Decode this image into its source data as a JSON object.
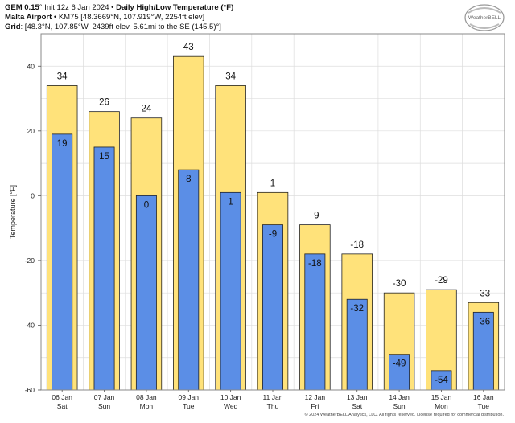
{
  "header": {
    "line1_model": "GEM 0.15",
    "line1_deg": "°",
    "line1_init": " Init 12z 6 Jan 2024",
    "line1_sep": " • ",
    "line1_title": "Daily High/Low Temperature (°F)",
    "line2_station": "Malta Airport",
    "line2_detail": " • KM75 [48.3669°N, 107.919°W, 2254ft elev]",
    "line3_label": "Grid",
    "line3_detail": ": [48.3°N, 107.85°W, 2439ft elev, 5.61mi to the SE (145.5)°]"
  },
  "logo": {
    "text": "WeatherBELL"
  },
  "footer": {
    "text": "© 2024 WeatherBELL Analytics, LLC. All rights reserved. License required for commercial distribution."
  },
  "chart_data": {
    "type": "bar",
    "title": "Daily High/Low Temperature (°F)",
    "ylabel": "Temperature [°F]",
    "xlabel": "",
    "ylim": [
      -60,
      50
    ],
    "yticks": [
      -60,
      -40,
      -20,
      0,
      20,
      40
    ],
    "grid": true,
    "categories": [
      {
        "date": "06 Jan",
        "day": "Sat"
      },
      {
        "date": "07 Jan",
        "day": "Sun"
      },
      {
        "date": "08 Jan",
        "day": "Mon"
      },
      {
        "date": "09 Jan",
        "day": "Tue"
      },
      {
        "date": "10 Jan",
        "day": "Wed"
      },
      {
        "date": "11 Jan",
        "day": "Thu"
      },
      {
        "date": "12 Jan",
        "day": "Fri"
      },
      {
        "date": "13 Jan",
        "day": "Sat"
      },
      {
        "date": "14 Jan",
        "day": "Sun"
      },
      {
        "date": "15 Jan",
        "day": "Mon"
      },
      {
        "date": "16 Jan",
        "day": "Tue"
      }
    ],
    "series": [
      {
        "key": "high",
        "color": "#ffe27a",
        "values": [
          34,
          26,
          24,
          43,
          34,
          1,
          -9,
          -18,
          -30,
          -29,
          -33
        ]
      },
      {
        "key": "low",
        "color": "#5b8ee6",
        "values": [
          19,
          15,
          0,
          8,
          1,
          -9,
          -18,
          -32,
          -49,
          -54,
          -36
        ]
      }
    ],
    "colors": {
      "frame": "#888888",
      "grid": "#dddddd",
      "bar_edge": "#222222"
    }
  }
}
